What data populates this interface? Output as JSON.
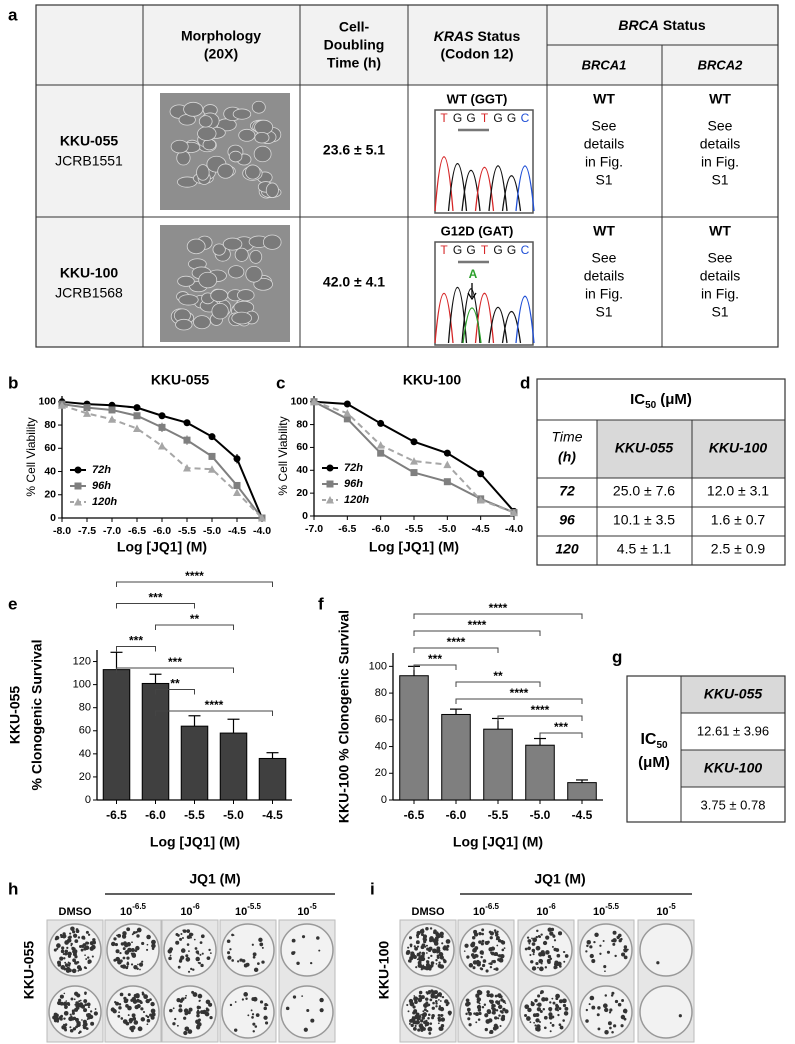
{
  "panel_labels": [
    "a",
    "b",
    "c",
    "d",
    "e",
    "f",
    "g",
    "h",
    "i"
  ],
  "table_a": {
    "headers": {
      "morphology": [
        "Morphology",
        "(20X)"
      ],
      "doubling": [
        "Cell-",
        "Doubling",
        "Time (h)"
      ],
      "kras": {
        "gene": "KRAS",
        "line1_rest": "Status",
        "line2": "(Codon 12)"
      },
      "brca": {
        "gene": "BRCA",
        "rest": "Status"
      },
      "brca1": "BRCA1",
      "brca2": "BRCA2"
    },
    "sequence": [
      "T",
      "G",
      "G",
      "T",
      "G",
      "G",
      "C"
    ],
    "rows": [
      {
        "name": "KKU-055",
        "id": "JCRB1551",
        "doubling": "23.6 ± 5.1",
        "kras": "WT (GGT)",
        "brca1": "WT",
        "brca1_note": [
          "See",
          "details",
          "in Fig.",
          "S1"
        ],
        "brca2": "WT",
        "brca2_note": [
          "See",
          "details",
          "in Fig.",
          "S1"
        ]
      },
      {
        "name": "KKU-100",
        "id": "JCRB1568",
        "doubling": "42.0 ± 4.1",
        "kras": "G12D (GAT)",
        "mutation": "A",
        "brca1": "WT",
        "brca1_note": [
          "See",
          "details",
          "in Fig.",
          "S1"
        ],
        "brca2": "WT",
        "brca2_note": [
          "See",
          "details",
          "in Fig.",
          "S1"
        ]
      }
    ]
  },
  "chart_data": [
    {
      "type": "line",
      "title": "KKU-055",
      "x_label": "Log [JQ1] (M)",
      "y_label": "% Cell Viability",
      "legend": "lower left",
      "xlim": [
        -8,
        -4
      ],
      "xticks": [
        {
          "value": -8,
          "label": "-8.0"
        },
        -7.5,
        {
          "value": -7,
          "label": "-7.0"
        },
        -6.5,
        {
          "value": -6,
          "label": "-6.0"
        },
        -5.5,
        {
          "value": -5,
          "label": "-5.0"
        },
        -4.5,
        {
          "value": -4,
          "label": "-4.0"
        }
      ],
      "ylim": [
        0,
        105
      ],
      "yticks": [
        0,
        20,
        40,
        60,
        80,
        100
      ],
      "series": [
        {
          "name": "72h",
          "color": "#000000",
          "marker": "circle",
          "dash": false,
          "x": [
            -8,
            -7.5,
            -7,
            -6.5,
            -6,
            -5.5,
            -5,
            -4.5,
            -4
          ],
          "values": [
            100,
            98,
            97,
            95,
            88,
            82,
            70,
            51,
            0
          ],
          "errors": [
            2,
            2,
            1,
            1,
            2,
            2,
            2,
            4,
            0
          ]
        },
        {
          "name": "96h",
          "color": "#7f7f7f",
          "marker": "square",
          "dash": false,
          "x": [
            -8,
            -7.5,
            -7,
            -6.5,
            -6,
            -5.5,
            -5,
            -4.5,
            -4
          ],
          "values": [
            98,
            95,
            93,
            88,
            78,
            67,
            53,
            28,
            0
          ],
          "errors": [
            1,
            2,
            2,
            2,
            4,
            4,
            3,
            2,
            0
          ]
        },
        {
          "name": "120h",
          "color": "#a6a6a6",
          "marker": "triangle",
          "dash": true,
          "x": [
            -8,
            -7.5,
            -7,
            -6.5,
            -6,
            -5.5,
            -5,
            -4.5,
            -4
          ],
          "values": [
            97,
            90,
            85,
            77,
            62,
            43,
            42,
            22,
            0
          ],
          "errors": [
            1,
            2,
            2,
            2,
            3,
            2,
            2,
            2,
            0
          ]
        }
      ]
    },
    {
      "type": "line",
      "title": "KKU-100",
      "x_label": "Log [JQ1] (M)",
      "y_label": "% Cell Viability",
      "legend": "lower left",
      "xlim": [
        -7,
        -4
      ],
      "xticks": [
        {
          "value": -7,
          "label": "-7.0"
        },
        -6.5,
        {
          "value": -6,
          "label": "-6.0"
        },
        -5.5,
        {
          "value": -5,
          "label": "-5.0"
        },
        -4.5,
        {
          "value": -4,
          "label": "-4.0"
        }
      ],
      "ylim": [
        0,
        105
      ],
      "yticks": [
        0,
        20,
        40,
        60,
        80,
        100
      ],
      "series": [
        {
          "name": "72h",
          "color": "#000000",
          "marker": "circle",
          "dash": false,
          "x": [
            -7,
            -6.5,
            -6,
            -5.5,
            -5,
            -4.5,
            -4
          ],
          "values": [
            100,
            98,
            81,
            65,
            55,
            37,
            4
          ]
        },
        {
          "name": "96h",
          "color": "#7f7f7f",
          "marker": "square",
          "dash": false,
          "x": [
            -7,
            -6.5,
            -6,
            -5.5,
            -5,
            -4.5,
            -4
          ],
          "values": [
            100,
            85,
            55,
            38,
            30,
            15,
            3
          ]
        },
        {
          "name": "120h",
          "color": "#a6a6a6",
          "marker": "triangle",
          "dash": true,
          "x": [
            -7,
            -6.5,
            -6,
            -5.5,
            -5,
            -4.5,
            -4
          ],
          "values": [
            100,
            90,
            62,
            48,
            45,
            14,
            3
          ]
        }
      ]
    },
    {
      "type": "bar",
      "x_label": "Log [JQ1] (M)",
      "y_label": [
        "KKU-055",
        "% Clonogenic  Survival"
      ],
      "color": "#404040",
      "categories": [
        "-6.5",
        "-6.0",
        "-5.5",
        "-5.0",
        "-4.5"
      ],
      "values": [
        113,
        101,
        64,
        58,
        36
      ],
      "errors": [
        15,
        8,
        9,
        12,
        5
      ],
      "ylim": [
        0,
        130
      ],
      "yticks": [
        0,
        20,
        40,
        60,
        80,
        100,
        120
      ],
      "significance": [
        {
          "from": 0,
          "to": 4,
          "label": "****"
        },
        {
          "from": 0,
          "to": 2,
          "label": "***"
        },
        {
          "from": 1,
          "to": 3,
          "label": "**"
        },
        {
          "from": 0,
          "to": 1,
          "label": "***"
        },
        {
          "from": 0,
          "to": 3,
          "label": "***"
        },
        {
          "from": 1,
          "to": 2,
          "label": "**"
        },
        {
          "from": 1,
          "to": 4,
          "label": "****"
        }
      ]
    },
    {
      "type": "bar",
      "x_label": "Log [JQ1] (M)",
      "y_label": "KKU-100 % Clonogenic Survival",
      "color": "#7f7f7f",
      "categories": [
        "-6.5",
        "-6.0",
        "-5.5",
        "-5.0",
        "-4.5"
      ],
      "values": [
        93,
        64,
        53,
        41,
        13
      ],
      "errors": [
        7,
        4,
        8,
        5,
        2
      ],
      "ylim": [
        0,
        110
      ],
      "yticks": [
        0,
        20,
        40,
        60,
        80,
        100
      ],
      "significance": [
        {
          "from": 0,
          "to": 4,
          "label": "****"
        },
        {
          "from": 0,
          "to": 3,
          "label": "****"
        },
        {
          "from": 0,
          "to": 2,
          "label": "****"
        },
        {
          "from": 0,
          "to": 1,
          "label": "***"
        },
        {
          "from": 1,
          "to": 3,
          "label": "**"
        },
        {
          "from": 1,
          "to": 4,
          "label": "****"
        },
        {
          "from": 2,
          "to": 4,
          "label": "****"
        },
        {
          "from": 3,
          "to": 4,
          "label": "***"
        }
      ]
    }
  ],
  "table_d": {
    "title": {
      "main": "IC",
      "sub": "50",
      "unit": "(μM)"
    },
    "time_header": [
      "Time",
      "(h)"
    ],
    "columns": [
      "KKU-055",
      "KKU-100"
    ],
    "rows": [
      {
        "time": 72,
        "values": [
          "25.0 ± 7.6",
          "12.0 ± 3.1"
        ]
      },
      {
        "time": 96,
        "values": [
          "10.1 ± 3.5",
          "1.6 ± 0.7"
        ]
      },
      {
        "time": 120,
        "values": [
          "4.5 ± 1.1",
          "2.5 ± 0.9"
        ]
      }
    ]
  },
  "table_g": {
    "label": {
      "main": "IC",
      "sub": "50",
      "unit": "(μM)"
    },
    "entries": [
      {
        "name": "KKU-055",
        "value": "12.61 ± 3.96"
      },
      {
        "name": "KKU-100",
        "value": "3.75 ± 0.78"
      }
    ]
  },
  "plates": [
    {
      "sample": "KKU-055",
      "control": "DMSO",
      "treatment": "JQ1 (M)",
      "doses": [
        {
          "base": "10",
          "exp": "-6.5"
        },
        {
          "base": "10",
          "exp": "-6"
        },
        {
          "base": "10",
          "exp": "-5.5"
        },
        {
          "base": "10",
          "exp": "-5"
        }
      ]
    },
    {
      "sample": "KKU-100",
      "control": "DMSO",
      "treatment": "JQ1 (M)",
      "doses": [
        {
          "base": "10",
          "exp": "-6.5"
        },
        {
          "base": "10",
          "exp": "-6"
        },
        {
          "base": "10",
          "exp": "-5.5"
        },
        {
          "base": "10",
          "exp": "-5"
        }
      ]
    }
  ]
}
